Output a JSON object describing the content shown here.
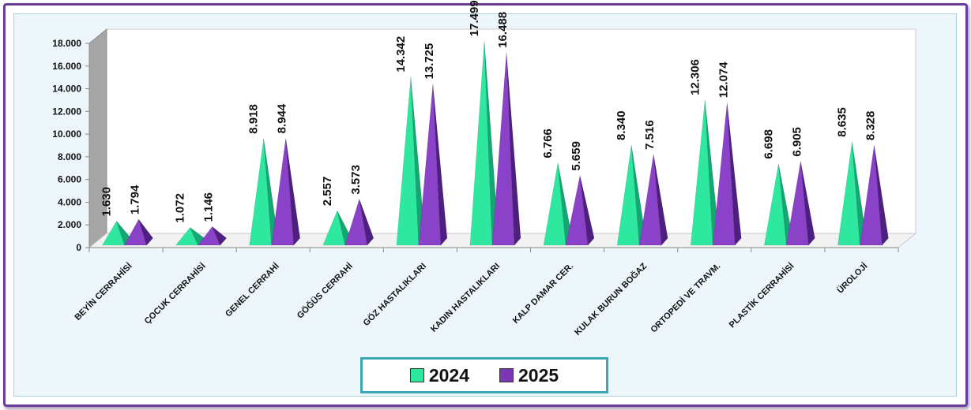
{
  "chart_data": {
    "type": "bar",
    "title": "",
    "xlabel": "",
    "ylabel": "",
    "ylim": [
      0,
      18000
    ],
    "y_ticks": [
      "0",
      "2.000",
      "4.000",
      "6.000",
      "8.000",
      "10.000",
      "12.000",
      "14.000",
      "16.000",
      "18.000"
    ],
    "categories": [
      "BEYİN CERRAHİSİ",
      "ÇOCUK CERRAHİSİ",
      "GENEL CERRAHİ",
      "GÖĞÜS CERRAHİ",
      "GÖZ HASTALIKLARI",
      "KADIN HASTALIKLARI",
      "KALP DAMAR CER.",
      "KULAK BURUN BOĞAZ",
      "ORTOPEDİ VE TRAVM.",
      "PLASTİK CERRAHİSİ",
      "ÜROLOJİ"
    ],
    "series": [
      {
        "name": "2024",
        "values": [
          1630,
          1072,
          8918,
          2557,
          14342,
          17499,
          6766,
          8340,
          12306,
          6698,
          8635
        ],
        "labels": [
          "1.630",
          "1.072",
          "8.918",
          "2.557",
          "14.342",
          "17.499",
          "6.766",
          "8.340",
          "12.306",
          "6.698",
          "8.635"
        ]
      },
      {
        "name": "2025",
        "values": [
          1794,
          1146,
          8944,
          3573,
          13725,
          16488,
          5659,
          7516,
          12074,
          6905,
          8328
        ],
        "labels": [
          "1.794",
          "1.146",
          "8.944",
          "3.573",
          "13.725",
          "16.488",
          "5.659",
          "7.516",
          "12.074",
          "6.905",
          "8.328"
        ]
      }
    ],
    "bar_shape": "pyramid",
    "legend_position": "bottom",
    "grid": false,
    "colors": {
      "2024": "#2ee8a0",
      "2025": "#7a36b5"
    }
  },
  "legend": {
    "label_2024": "2024",
    "label_2025": "2025"
  }
}
